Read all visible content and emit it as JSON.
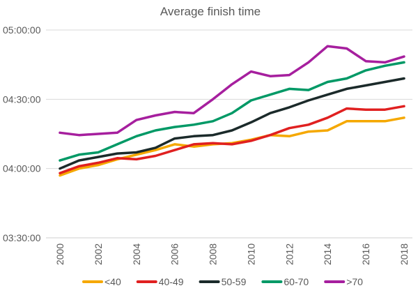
{
  "chart_data": {
    "type": "line",
    "title": "Average finish time",
    "xlabel": "",
    "ylabel": "",
    "x": [
      2000,
      2001,
      2002,
      2003,
      2004,
      2005,
      2006,
      2007,
      2008,
      2009,
      2010,
      2011,
      2012,
      2013,
      2014,
      2015,
      2016,
      2017,
      2018
    ],
    "x_ticks": [
      "2000",
      "2002",
      "2004",
      "2006",
      "2008",
      "2010",
      "2012",
      "2014",
      "2016",
      "2018"
    ],
    "y_ticks": [
      "03:30:00",
      "04:00:00",
      "04:30:00",
      "05:00:00"
    ],
    "y_unit": "minutes",
    "ylim": [
      210,
      300
    ],
    "grid": true,
    "legend_position": "bottom",
    "series": [
      {
        "name": "<40",
        "color": "#f5a800",
        "values": [
          237,
          240,
          241.5,
          244,
          246,
          248,
          250.5,
          249.5,
          250.5,
          251,
          252.5,
          254.5,
          254,
          256,
          256.5,
          260.5,
          260.5,
          260.5,
          262
        ]
      },
      {
        "name": "40-49",
        "color": "#e02020",
        "values": [
          238,
          241,
          242.5,
          244.5,
          244,
          245.5,
          248,
          250.5,
          251,
          250.5,
          252,
          254.5,
          257.5,
          259,
          262,
          266,
          265.5,
          265.5,
          267
        ]
      },
      {
        "name": "50-59",
        "color": "#1b2a2a",
        "values": [
          240,
          243.5,
          245,
          246.5,
          247,
          249,
          253,
          254,
          254.5,
          256.5,
          260,
          264,
          266.5,
          269.5,
          272,
          274.5,
          276,
          277.5,
          279
        ]
      },
      {
        "name": "60-70",
        "color": "#009966",
        "values": [
          243.5,
          246,
          247,
          250.5,
          254,
          256.5,
          258,
          259,
          260.5,
          264,
          269.5,
          272,
          274.5,
          274,
          277.5,
          279,
          282.5,
          284.5,
          286
        ]
      },
      {
        "name": ">70",
        "color": "#a61f9e",
        "values": [
          255.5,
          254.5,
          255,
          255.5,
          261,
          263,
          264.5,
          264,
          270,
          276.5,
          282,
          280,
          280.5,
          286,
          293,
          292,
          286.5,
          286,
          288.5
        ]
      }
    ]
  }
}
